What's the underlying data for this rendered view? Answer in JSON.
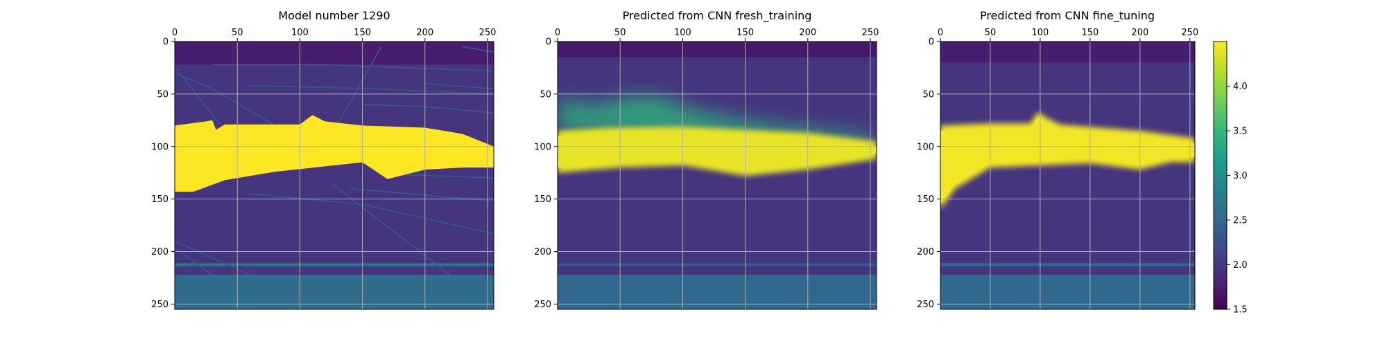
{
  "chart_data": [
    {
      "type": "heatmap",
      "title": "Model number 1290",
      "x_ticks": [
        0,
        50,
        100,
        150,
        200,
        250
      ],
      "y_ticks": [
        0,
        50,
        100,
        150,
        200,
        250
      ],
      "xlim": [
        0,
        255
      ],
      "ylim": [
        255,
        0
      ],
      "grid": true,
      "colormap": "viridis",
      "value_range": [
        1.5,
        4.5
      ],
      "background_value": 1.85,
      "layers": [
        {
          "value": 1.75,
          "y_range": [
            0,
            22
          ]
        },
        {
          "value": 1.95,
          "y_range": [
            22,
            222
          ]
        },
        {
          "value": 2.55,
          "y_range": [
            222,
            255
          ]
        },
        {
          "value": 2.6,
          "y_range": [
            211,
            214
          ]
        }
      ],
      "high_velocity_body": {
        "value": 4.5,
        "top_boundary": [
          [
            0,
            80
          ],
          [
            25,
            76
          ],
          [
            30,
            75
          ],
          [
            33,
            84
          ],
          [
            40,
            79
          ],
          [
            100,
            79
          ],
          [
            110,
            70
          ],
          [
            120,
            76
          ],
          [
            150,
            80
          ],
          [
            200,
            82
          ],
          [
            230,
            88
          ],
          [
            255,
            100
          ]
        ],
        "bottom_boundary": [
          [
            0,
            143
          ],
          [
            15,
            143
          ],
          [
            40,
            132
          ],
          [
            80,
            124
          ],
          [
            150,
            115
          ],
          [
            170,
            131
          ],
          [
            200,
            122
          ],
          [
            230,
            120
          ],
          [
            255,
            120
          ]
        ]
      },
      "thin_layers": [
        {
          "value": 2.35,
          "points": [
            [
              0,
              24
            ],
            [
              40,
              85
            ]
          ]
        },
        {
          "value": 2.35,
          "points": [
            [
              0,
              30
            ],
            [
              30,
              45
            ],
            [
              80,
              80
            ]
          ]
        },
        {
          "value": 2.35,
          "points": [
            [
              30,
              22
            ],
            [
              120,
              22
            ],
            [
              255,
              28
            ]
          ]
        },
        {
          "value": 2.35,
          "points": [
            [
              60,
              42
            ],
            [
              160,
              45
            ],
            [
              255,
              50
            ]
          ]
        },
        {
          "value": 2.35,
          "points": [
            [
              150,
              60
            ],
            [
              200,
              62
            ],
            [
              255,
              68
            ]
          ]
        },
        {
          "value": 2.35,
          "points": [
            [
              200,
              40
            ],
            [
              255,
              45
            ]
          ]
        },
        {
          "value": 2.35,
          "points": [
            [
              170,
              126
            ],
            [
              255,
              130
            ]
          ]
        },
        {
          "value": 2.35,
          "points": [
            [
              60,
              145
            ],
            [
              150,
              155
            ],
            [
              255,
              183
            ]
          ]
        },
        {
          "value": 2.35,
          "points": [
            [
              125,
              135
            ],
            [
              220,
              222
            ]
          ]
        },
        {
          "value": 2.35,
          "points": [
            [
              0,
              190
            ],
            [
              60,
              222
            ]
          ]
        },
        {
          "value": 2.35,
          "points": [
            [
              0,
              197
            ],
            [
              30,
              222
            ]
          ]
        },
        {
          "value": 2.35,
          "points": [
            [
              140,
              140
            ],
            [
              255,
              152
            ]
          ]
        },
        {
          "value": 2.35,
          "points": [
            [
              120,
              100
            ],
            [
              165,
              5
            ]
          ]
        },
        {
          "value": 2.35,
          "points": [
            [
              230,
              5
            ],
            [
              255,
              10
            ]
          ]
        }
      ]
    },
    {
      "type": "heatmap",
      "title": "Predicted from CNN fresh_training",
      "x_ticks": [
        0,
        50,
        100,
        150,
        200,
        250
      ],
      "y_ticks": [
        0,
        50,
        100,
        150,
        200,
        250
      ],
      "xlim": [
        0,
        255
      ],
      "ylim": [
        255,
        0
      ],
      "grid": true,
      "colormap": "viridis",
      "value_range": [
        1.5,
        4.5
      ],
      "background_value": 2.0,
      "layers": [
        {
          "value": 1.7,
          "y_range": [
            0,
            15
          ]
        },
        {
          "value": 1.95,
          "y_range": [
            15,
            222
          ]
        },
        {
          "value": 2.5,
          "y_range": [
            222,
            255
          ]
        },
        {
          "value": 2.3,
          "y_range": [
            211,
            214
          ]
        }
      ],
      "high_velocity_body": {
        "value": 4.4,
        "top_boundary": [
          [
            0,
            85
          ],
          [
            40,
            82
          ],
          [
            100,
            81
          ],
          [
            150,
            84
          ],
          [
            200,
            87
          ],
          [
            255,
            95
          ]
        ],
        "bottom_boundary": [
          [
            0,
            125
          ],
          [
            50,
            120
          ],
          [
            100,
            118
          ],
          [
            150,
            128
          ],
          [
            200,
            122
          ],
          [
            255,
            112
          ]
        ]
      },
      "halo": {
        "value": 3.4,
        "top_boundary": [
          [
            0,
            55
          ],
          [
            30,
            60
          ],
          [
            60,
            52
          ],
          [
            80,
            52
          ],
          [
            110,
            65
          ],
          [
            150,
            75
          ],
          [
            255,
            90
          ]
        ],
        "bottom_boundary": [
          [
            0,
            85
          ],
          [
            255,
            100
          ]
        ]
      }
    },
    {
      "type": "heatmap",
      "title": "Predicted from CNN fine_tuning",
      "x_ticks": [
        0,
        50,
        100,
        150,
        200,
        250
      ],
      "y_ticks": [
        0,
        50,
        100,
        150,
        200,
        250
      ],
      "xlim": [
        0,
        255
      ],
      "ylim": [
        255,
        0
      ],
      "grid": true,
      "colormap": "viridis",
      "value_range": [
        1.5,
        4.5
      ],
      "background_value": 1.95,
      "layers": [
        {
          "value": 1.75,
          "y_range": [
            0,
            20
          ]
        },
        {
          "value": 1.95,
          "y_range": [
            20,
            222
          ]
        },
        {
          "value": 2.5,
          "y_range": [
            222,
            255
          ]
        },
        {
          "value": 2.5,
          "y_range": [
            211,
            214
          ]
        }
      ],
      "high_velocity_body": {
        "value": 4.45,
        "top_boundary": [
          [
            0,
            80
          ],
          [
            50,
            78
          ],
          [
            90,
            78
          ],
          [
            98,
            67
          ],
          [
            105,
            72
          ],
          [
            120,
            79
          ],
          [
            200,
            85
          ],
          [
            255,
            92
          ]
        ],
        "bottom_boundary": [
          [
            0,
            160
          ],
          [
            15,
            140
          ],
          [
            50,
            120
          ],
          [
            100,
            118
          ],
          [
            150,
            116
          ],
          [
            200,
            122
          ],
          [
            230,
            115
          ],
          [
            255,
            115
          ]
        ]
      }
    }
  ],
  "colorbar": {
    "ticks": [
      4.0,
      3.5,
      3.0,
      2.5,
      2.0,
      1.5
    ],
    "labels": [
      "4.0",
      "3.5",
      "3.0",
      "2.5",
      "2.0",
      "1.5"
    ],
    "range": [
      1.5,
      4.5
    ]
  },
  "colors": {
    "viridis_stops": [
      "#440154",
      "#482878",
      "#3e4989",
      "#31688e",
      "#26828e",
      "#1f9e89",
      "#35b779",
      "#6ece58",
      "#b5de2b",
      "#fde725"
    ],
    "grid": "#b0b0b0",
    "axis": "#000000"
  }
}
